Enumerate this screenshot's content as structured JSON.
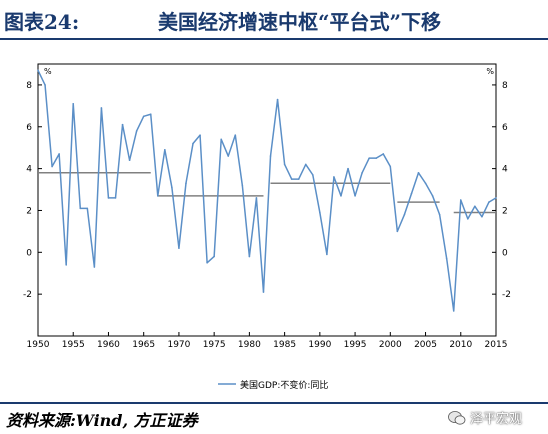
{
  "header": {
    "figure_label": "图表24:",
    "title": "美国经济增速中枢“平台式”下移"
  },
  "source": "资料来源:Wind, 方正证券",
  "watermark": {
    "text": "泽平宏观",
    "icon": "wechat-icon"
  },
  "colors": {
    "series": "#5b8fc7",
    "average": "#808080",
    "title": "#1a3a6e"
  },
  "chart_data": {
    "type": "line",
    "title": "",
    "xlabel": "",
    "ylabel": "%",
    "ylabel_right": "%",
    "xlim": [
      1950,
      2015
    ],
    "ylim": [
      -4,
      9
    ],
    "x_ticks": [
      1950,
      1955,
      1960,
      1965,
      1970,
      1975,
      1980,
      1985,
      1990,
      1995,
      2000,
      2005,
      2010,
      2015
    ],
    "y_ticks": [
      -2,
      0,
      2,
      4,
      6,
      8
    ],
    "grid": false,
    "legend_position": "bottom-center",
    "series": [
      {
        "name": "美国GDP:不变价:同比",
        "x": [
          1950,
          1951,
          1952,
          1953,
          1954,
          1955,
          1956,
          1957,
          1958,
          1959,
          1960,
          1961,
          1962,
          1963,
          1964,
          1965,
          1966,
          1967,
          1968,
          1969,
          1970,
          1971,
          1972,
          1973,
          1974,
          1975,
          1976,
          1977,
          1978,
          1979,
          1980,
          1981,
          1982,
          1983,
          1984,
          1985,
          1986,
          1987,
          1988,
          1989,
          1990,
          1991,
          1992,
          1993,
          1994,
          1995,
          1996,
          1997,
          1998,
          1999,
          2000,
          2001,
          2002,
          2003,
          2004,
          2005,
          2006,
          2007,
          2008,
          2009,
          2010,
          2011,
          2012,
          2013,
          2014,
          2015
        ],
        "values": [
          8.7,
          8.0,
          4.1,
          4.7,
          -0.6,
          7.1,
          2.1,
          2.1,
          -0.7,
          6.9,
          2.6,
          2.6,
          6.1,
          4.4,
          5.8,
          6.5,
          6.6,
          2.7,
          4.9,
          3.1,
          0.2,
          3.3,
          5.2,
          5.6,
          -0.5,
          -0.2,
          5.4,
          4.6,
          5.6,
          3.2,
          -0.2,
          2.6,
          -1.9,
          4.6,
          7.3,
          4.2,
          3.5,
          3.5,
          4.2,
          3.7,
          1.9,
          -0.1,
          3.6,
          2.7,
          4.0,
          2.7,
          3.8,
          4.5,
          4.5,
          4.7,
          4.1,
          1.0,
          1.8,
          2.8,
          3.8,
          3.3,
          2.7,
          1.8,
          -0.3,
          -2.8,
          2.5,
          1.6,
          2.2,
          1.7,
          2.4,
          2.6
        ]
      }
    ],
    "average_segments": [
      {
        "x_start": 1950,
        "x_end": 1966,
        "value": 3.8
      },
      {
        "x_start": 1967,
        "x_end": 1982,
        "value": 2.7
      },
      {
        "x_start": 1983,
        "x_end": 2000,
        "value": 3.3
      },
      {
        "x_start": 2001,
        "x_end": 2007,
        "value": 2.4
      },
      {
        "x_start": 2009,
        "x_end": 2015,
        "value": 1.9
      }
    ]
  }
}
